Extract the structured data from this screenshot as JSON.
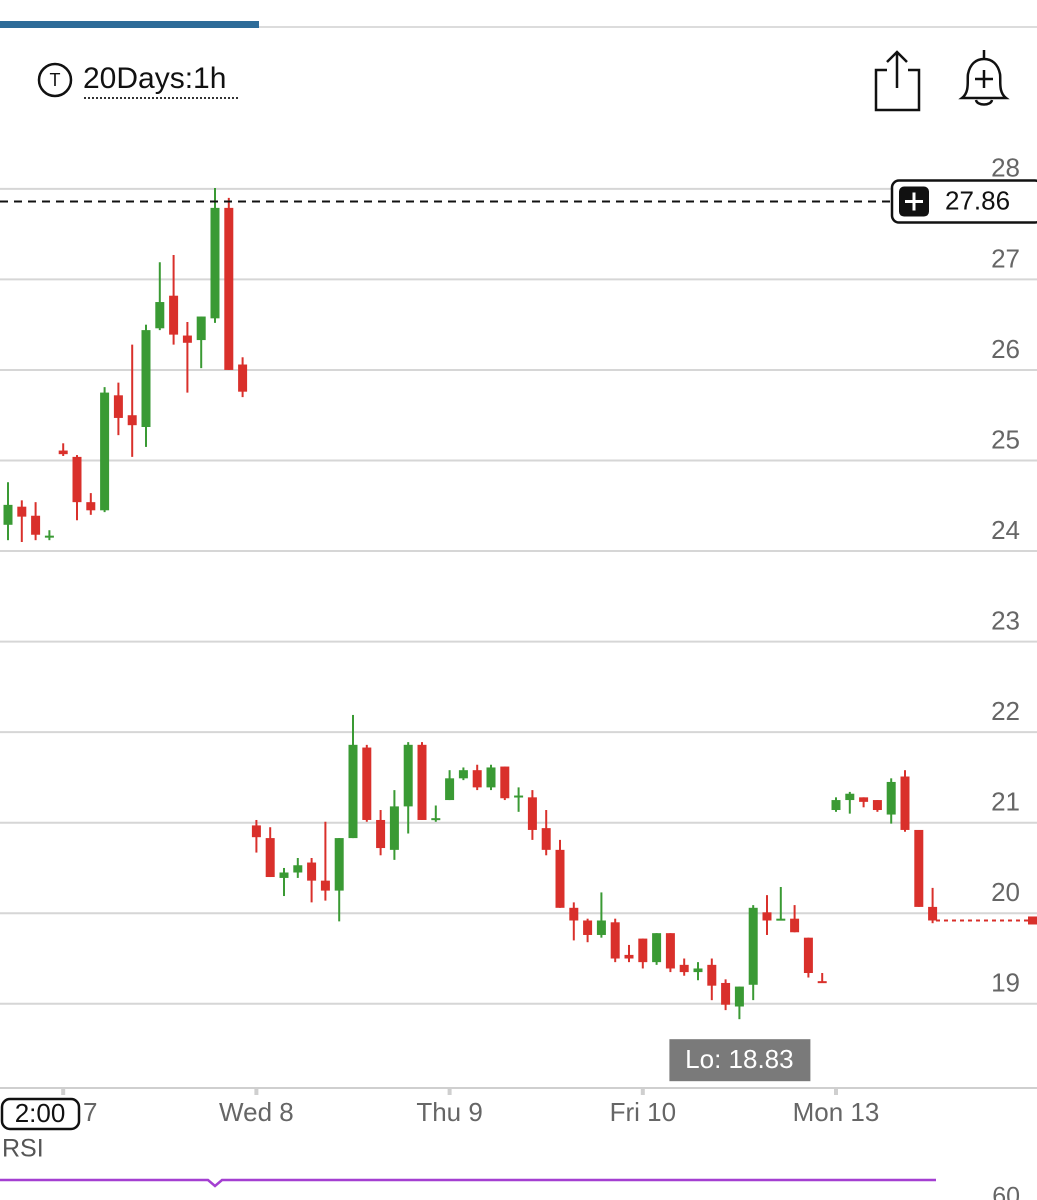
{
  "header": {
    "symbol_icon": "T",
    "interval": "20Days:1h"
  },
  "chart_data": {
    "type": "candlestick",
    "categories": [
      null,
      null,
      null,
      null,
      "7",
      null,
      null,
      null,
      null,
      null,
      null,
      null,
      null,
      null,
      null,
      null,
      null,
      null,
      "Wed 8",
      null,
      null,
      null,
      null,
      null,
      null,
      null,
      null,
      null,
      null,
      null,
      null,
      null,
      "Thu 9",
      null,
      null,
      null,
      null,
      null,
      null,
      null,
      null,
      null,
      null,
      null,
      null,
      null,
      "Fri 10",
      null,
      null,
      null,
      null,
      null,
      null,
      null,
      null,
      null,
      null,
      null,
      null,
      null,
      "Mon 13",
      null,
      null,
      null,
      null,
      null,
      null,
      null,
      null,
      null,
      null,
      null,
      null,
      null,
      null
    ],
    "open": [
      24.29,
      24.49,
      24.39,
      24.15,
      25.11,
      25.04,
      24.54,
      24.45,
      25.72,
      25.5,
      25.37,
      26.46,
      26.82,
      26.38,
      26.33,
      26.57,
      27.79,
      26.06,
      20.97,
      20.83,
      20.39,
      20.45,
      20.56,
      20.36,
      20.25,
      20.83,
      21.83,
      21.03,
      20.7,
      21.18,
      21.86,
      21.03,
      21.25,
      21.49,
      21.58,
      21.39,
      21.62,
      21.28,
      21.28,
      20.94,
      20.7,
      20.06,
      19.92,
      19.76,
      19.9,
      19.54,
      19.72,
      19.46,
      19.78,
      19.43,
      19.35,
      19.43,
      19.23,
      18.97,
      19.21,
      20.01,
      19.92,
      19.94,
      19.73,
      19.25,
      21.14,
      21.25,
      21.28,
      21.25,
      21.09,
      21.51,
      20.92,
      20.07,
      null,
      null,
      null,
      null,
      null,
      null,
      null
    ],
    "high": [
      24.76,
      24.56,
      24.54,
      24.23,
      25.19,
      25.06,
      24.64,
      25.81,
      25.86,
      26.28,
      26.5,
      27.19,
      27.27,
      26.53,
      26.59,
      28.01,
      27.9,
      26.14,
      21.03,
      20.95,
      20.5,
      20.61,
      20.61,
      21.01,
      20.83,
      22.19,
      21.86,
      21.14,
      21.36,
      21.89,
      21.89,
      21.19,
      21.58,
      21.61,
      21.64,
      21.64,
      21.62,
      21.39,
      21.36,
      21.14,
      20.81,
      20.12,
      19.94,
      20.23,
      19.94,
      19.65,
      19.72,
      19.78,
      19.78,
      19.5,
      19.46,
      19.5,
      19.27,
      19.19,
      20.09,
      20.2,
      20.29,
      20.09,
      19.73,
      19.34,
      21.28,
      21.34,
      21.28,
      21.25,
      21.49,
      21.58,
      20.92,
      20.28,
      null,
      null,
      null,
      null,
      null,
      null,
      null
    ],
    "low": [
      24.12,
      24.1,
      24.12,
      24.12,
      25.05,
      24.34,
      24.4,
      24.43,
      25.28,
      25.04,
      25.15,
      26.44,
      26.28,
      25.75,
      26.02,
      26.52,
      26.0,
      25.7,
      20.67,
      20.4,
      20.19,
      20.39,
      20.12,
      20.14,
      19.91,
      20.83,
      21.01,
      20.64,
      20.59,
      20.88,
      21.03,
      21.01,
      21.25,
      21.47,
      21.36,
      21.36,
      21.25,
      21.12,
      20.81,
      20.64,
      20.06,
      19.7,
      19.68,
      19.73,
      19.46,
      19.46,
      19.39,
      19.43,
      19.35,
      19.31,
      19.26,
      19.04,
      18.93,
      18.83,
      19.04,
      19.76,
      19.92,
      19.79,
      19.29,
      19.23,
      21.12,
      21.1,
      21.17,
      21.12,
      20.99,
      20.9,
      20.07,
      19.89,
      null,
      null,
      null,
      null,
      null,
      null,
      null
    ],
    "close": [
      24.51,
      24.38,
      24.18,
      24.17,
      25.07,
      24.54,
      24.45,
      25.75,
      25.47,
      25.39,
      26.44,
      26.75,
      26.39,
      26.3,
      26.59,
      27.79,
      26.0,
      25.76,
      20.84,
      20.4,
      20.45,
      20.53,
      20.36,
      20.25,
      20.83,
      21.86,
      21.03,
      20.72,
      21.18,
      21.86,
      21.03,
      21.05,
      21.49,
      21.58,
      21.39,
      21.61,
      21.27,
      21.3,
      20.92,
      20.7,
      20.06,
      19.92,
      19.76,
      19.92,
      19.5,
      19.5,
      19.46,
      19.78,
      19.39,
      19.35,
      19.39,
      19.2,
      18.99,
      19.19,
      20.06,
      19.92,
      19.94,
      19.79,
      19.34,
      19.23,
      21.25,
      21.32,
      21.23,
      21.14,
      21.45,
      20.92,
      20.07,
      19.92,
      null,
      null,
      null,
      null,
      null,
      null,
      null
    ],
    "up_color": "#3a9a34",
    "down_color": "#d9302b",
    "ylim": [
      18.07,
      28.65
    ],
    "yticks": [
      19,
      20,
      21,
      22,
      23,
      24,
      25,
      26,
      27,
      28
    ],
    "grid": true,
    "crosshair": {
      "value": 27.86,
      "time_label": "2:00"
    },
    "low_marker": {
      "label": "Lo: 18.83",
      "value": 18.83
    },
    "last_price": 19.92
  },
  "rsi": {
    "title": "RSI",
    "yticks": [
      60
    ]
  }
}
